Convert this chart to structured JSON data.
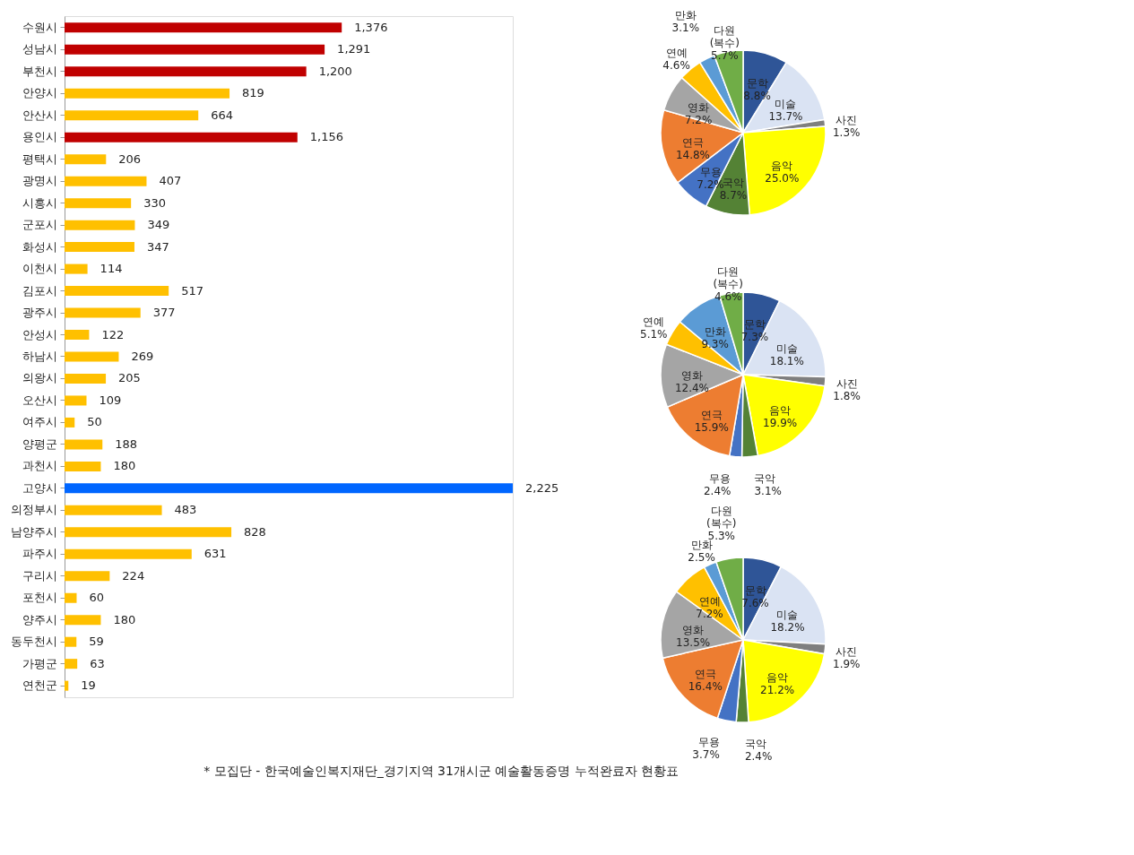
{
  "chart_data": [
    {
      "type": "bar",
      "orientation": "horizontal",
      "categories": [
        "수원시",
        "성남시",
        "부천시",
        "안양시",
        "안산시",
        "용인시",
        "평택시",
        "광명시",
        "시흥시",
        "군포시",
        "화성시",
        "이천시",
        "김포시",
        "광주시",
        "안성시",
        "하남시",
        "의왕시",
        "오산시",
        "여주시",
        "양평군",
        "과천시",
        "고양시",
        "의정부시",
        "남양주시",
        "파주시",
        "구리시",
        "포천시",
        "양주시",
        "동두천시",
        "가평군",
        "연천군"
      ],
      "values": [
        1376,
        1291,
        1200,
        819,
        664,
        1156,
        206,
        407,
        330,
        349,
        347,
        114,
        517,
        377,
        122,
        269,
        205,
        109,
        50,
        188,
        180,
        2225,
        483,
        828,
        631,
        224,
        60,
        180,
        59,
        63,
        19
      ],
      "value_labels": [
        "1,376",
        "1,291",
        "1,200",
        "819",
        "664",
        "1,156",
        "206",
        "407",
        "330",
        "349",
        "347",
        "114",
        "517",
        "377",
        "122",
        "269",
        "205",
        "109",
        "50",
        "188",
        "180",
        "2,225",
        "483",
        "828",
        "631",
        "224",
        "60",
        "180",
        "59",
        "63",
        "19"
      ],
      "colors": [
        "#c00000",
        "#c00000",
        "#c00000",
        "#ffc000",
        "#ffc000",
        "#c00000",
        "#ffc000",
        "#ffc000",
        "#ffc000",
        "#ffc000",
        "#ffc000",
        "#ffc000",
        "#ffc000",
        "#ffc000",
        "#ffc000",
        "#ffc000",
        "#ffc000",
        "#ffc000",
        "#ffc000",
        "#ffc000",
        "#ffc000",
        "#0066ff",
        "#ffc000",
        "#ffc000",
        "#ffc000",
        "#ffc000",
        "#ffc000",
        "#ffc000",
        "#ffc000",
        "#ffc000",
        "#ffc000"
      ],
      "annotations": [
        "* 모집단 - 한국예술인복지재단_경기지역 31개시군 예술활동증명 누적완료자 현황표"
      ]
    },
    {
      "type": "pie",
      "categories": [
        "문학",
        "미술",
        "사진",
        "음악",
        "국악",
        "무용",
        "연극",
        "영화",
        "연예",
        "만화",
        "다원\n(복수)"
      ],
      "values": [
        8.8,
        13.7,
        1.3,
        25.0,
        8.7,
        7.2,
        14.8,
        7.2,
        4.6,
        3.1,
        5.7
      ],
      "value_labels": [
        "8.8%",
        "13.7%",
        "1.3%",
        "25.0%",
        "8.7%",
        "7.2%",
        "14.8%",
        "7.2%",
        "4.6%",
        "3.1%",
        "5.7%"
      ],
      "colors": [
        "#2f5597",
        "#dae3f3",
        "#7f7f7f",
        "#ffff00",
        "#548235",
        "#4472c4",
        "#ed7d31",
        "#a5a5a5",
        "#ffc000",
        "#5b9bd5",
        "#70ad47"
      ]
    },
    {
      "type": "pie",
      "categories": [
        "문학",
        "미술",
        "사진",
        "음악",
        "국악",
        "무용",
        "연극",
        "영화",
        "연예",
        "만화",
        "다원\n(복수)"
      ],
      "values": [
        7.3,
        18.1,
        1.8,
        19.9,
        3.1,
        2.4,
        15.9,
        12.4,
        5.1,
        9.3,
        4.6
      ],
      "value_labels": [
        "7.3%",
        "18.1%",
        "1.8%",
        "19.9%",
        "3.1%",
        "2.4%",
        "15.9%",
        "12.4%",
        "5.1%",
        "9.3%",
        "4.6%"
      ],
      "colors": [
        "#2f5597",
        "#dae3f3",
        "#7f7f7f",
        "#ffff00",
        "#548235",
        "#4472c4",
        "#ed7d31",
        "#a5a5a5",
        "#ffc000",
        "#5b9bd5",
        "#70ad47"
      ]
    },
    {
      "type": "pie",
      "categories": [
        "문학",
        "미술",
        "사진",
        "음악",
        "국악",
        "무용",
        "연극",
        "영화",
        "연예",
        "만화",
        "다원\n(복수)"
      ],
      "values": [
        7.6,
        18.2,
        1.9,
        21.2,
        2.4,
        3.7,
        16.4,
        13.5,
        7.2,
        2.5,
        5.3
      ],
      "value_labels": [
        "7.6%",
        "18.2%",
        "1.9%",
        "21.2%",
        "2.4%",
        "3.7%",
        "16.4%",
        "13.5%",
        "7.2%",
        "2.5%",
        "5.3%"
      ],
      "colors": [
        "#2f5597",
        "#dae3f3",
        "#7f7f7f",
        "#ffff00",
        "#548235",
        "#4472c4",
        "#ed7d31",
        "#a5a5a5",
        "#ffc000",
        "#5b9bd5",
        "#70ad47"
      ]
    }
  ]
}
